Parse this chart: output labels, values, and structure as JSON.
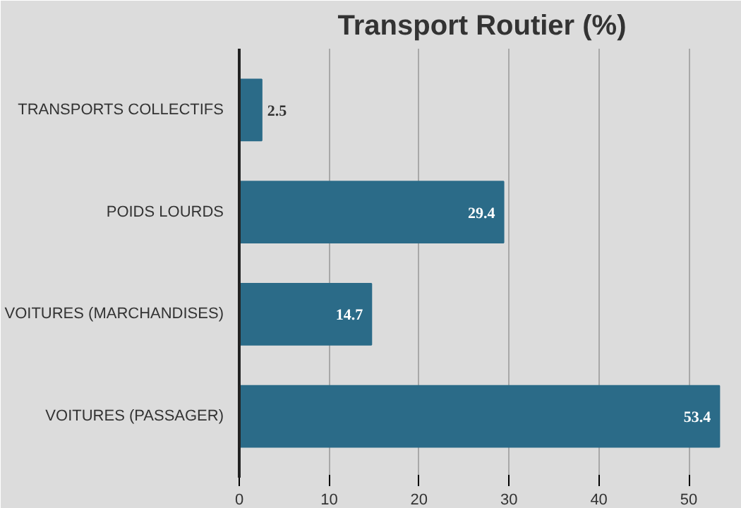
{
  "chart_data": {
    "type": "bar",
    "orientation": "horizontal",
    "title": "Transport Routier (%)",
    "categories": [
      "TRANSPORTS COLLECTIFS",
      "POIDS LOURDS",
      "VOITURES (MARCHANDISES)",
      "VOITURES (PASSAGER)"
    ],
    "values": [
      2.5,
      29.4,
      14.7,
      53.4
    ],
    "color": "#2b6b88",
    "data_labels": true,
    "xlim": [
      0,
      54
    ],
    "xticks": [
      0,
      10,
      20,
      30,
      40,
      50
    ],
    "grid": "x"
  }
}
